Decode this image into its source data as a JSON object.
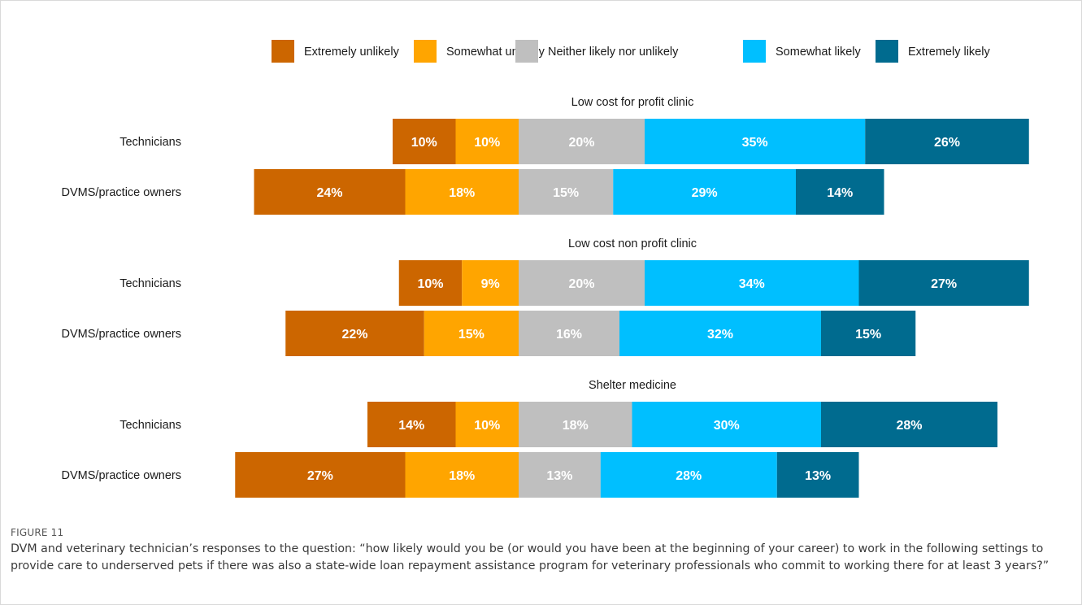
{
  "figure": {
    "label": "FIGURE 11",
    "caption": "DVM and veterinary technician’s responses to the question: “how likely would you be (or would you have been at the beginning of your career) to work in the following settings to provide care to underserved pets if there was also a state-wide loan repayment assistance program for veterinary professionals who commit to working there for at least 3 years?”"
  },
  "chart_data": {
    "type": "bar",
    "orientation": "horizontal",
    "stacked": "diverging",
    "legend_position": "top",
    "grid": false,
    "categories": [
      "Extremely unlikely",
      "Somewhat unlikely",
      "Neither likely nor unlikely",
      "Somewhat likely",
      "Extremely likely"
    ],
    "colors": [
      "#cc6600",
      "#ffa500",
      "#bfbfbf",
      "#00bfff",
      "#006b8f"
    ],
    "value_unit": "%",
    "groups": [
      {
        "title": "Low cost for profit clinic",
        "rows": [
          {
            "label": "Technicians",
            "values": [
              10,
              10,
              20,
              35,
              26
            ]
          },
          {
            "label": "DVMS/practice owners",
            "values": [
              24,
              18,
              15,
              29,
              14
            ]
          }
        ]
      },
      {
        "title": "Low cost non profit clinic",
        "rows": [
          {
            "label": "Technicians",
            "values": [
              10,
              9,
              20,
              34,
              27
            ]
          },
          {
            "label": "DVMS/practice owners",
            "values": [
              22,
              15,
              16,
              32,
              15
            ]
          }
        ]
      },
      {
        "title": "Shelter medicine",
        "rows": [
          {
            "label": "Technicians",
            "values": [
              14,
              10,
              18,
              30,
              28
            ]
          },
          {
            "label": "DVMS/practice owners",
            "values": [
              27,
              18,
              13,
              28,
              13
            ]
          }
        ]
      }
    ]
  }
}
